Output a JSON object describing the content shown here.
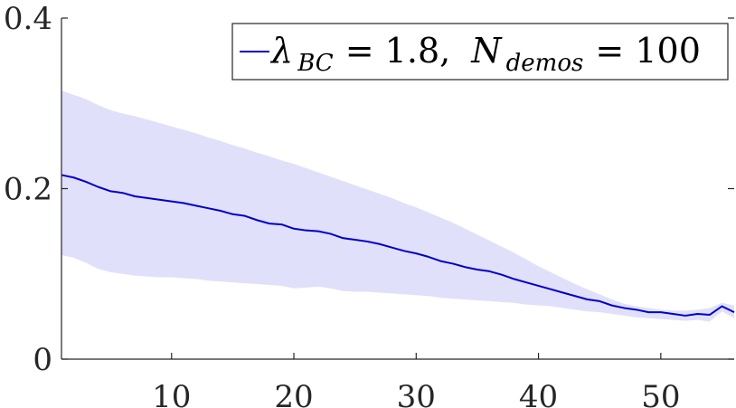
{
  "chart_data": {
    "type": "line",
    "title": "",
    "xlabel": "",
    "ylabel": "",
    "xlim": [
      1,
      56
    ],
    "ylim": [
      0,
      0.4
    ],
    "grid": false,
    "legend_position": "top-right",
    "x_ticks": [
      10,
      20,
      30,
      40,
      50
    ],
    "x_tick_labels": [
      "10",
      "20",
      "30",
      "40",
      "50"
    ],
    "y_ticks": [
      0,
      0.2,
      0.4
    ],
    "y_tick_labels": [
      "0",
      "0.2",
      "0.4"
    ],
    "series": [
      {
        "name": "λBC = 1.8, Ndemos = 100",
        "legend": {
          "lambda_symbol": "λ",
          "lambda_subscript": "BC",
          "lambda_value": "= 1.8,",
          "n_symbol": "N",
          "n_subscript": "demos",
          "n_value": "= 100"
        },
        "color": "#0000cc",
        "band_color": "#e0e0fa",
        "x": [
          1,
          2,
          3,
          4,
          5,
          6,
          7,
          8,
          9,
          10,
          11,
          12,
          13,
          14,
          15,
          16,
          17,
          18,
          19,
          20,
          21,
          22,
          23,
          24,
          25,
          26,
          27,
          28,
          29,
          30,
          31,
          32,
          33,
          34,
          35,
          36,
          37,
          38,
          39,
          40,
          41,
          42,
          43,
          44,
          45,
          46,
          47,
          48,
          49,
          50,
          51,
          52,
          53,
          54,
          55,
          56
        ],
        "mean": [
          0.216,
          0.213,
          0.208,
          0.202,
          0.197,
          0.195,
          0.191,
          0.189,
          0.187,
          0.185,
          0.183,
          0.18,
          0.177,
          0.174,
          0.17,
          0.168,
          0.163,
          0.159,
          0.158,
          0.153,
          0.151,
          0.15,
          0.147,
          0.142,
          0.14,
          0.138,
          0.135,
          0.131,
          0.127,
          0.124,
          0.12,
          0.115,
          0.112,
          0.108,
          0.105,
          0.103,
          0.099,
          0.094,
          0.09,
          0.086,
          0.082,
          0.078,
          0.074,
          0.07,
          0.068,
          0.063,
          0.06,
          0.058,
          0.055,
          0.055,
          0.053,
          0.051,
          0.053,
          0.052,
          0.062,
          0.055
        ],
        "upper": [
          0.315,
          0.31,
          0.305,
          0.298,
          0.292,
          0.288,
          0.285,
          0.281,
          0.277,
          0.273,
          0.269,
          0.265,
          0.26,
          0.256,
          0.251,
          0.247,
          0.242,
          0.238,
          0.233,
          0.229,
          0.224,
          0.219,
          0.214,
          0.209,
          0.204,
          0.199,
          0.194,
          0.189,
          0.183,
          0.178,
          0.172,
          0.166,
          0.16,
          0.153,
          0.146,
          0.139,
          0.132,
          0.125,
          0.117,
          0.109,
          0.102,
          0.095,
          0.088,
          0.082,
          0.076,
          0.07,
          0.065,
          0.062,
          0.06,
          0.058,
          0.057,
          0.057,
          0.058,
          0.06,
          0.066,
          0.063
        ],
        "lower": [
          0.122,
          0.119,
          0.113,
          0.106,
          0.102,
          0.1,
          0.098,
          0.097,
          0.096,
          0.096,
          0.095,
          0.094,
          0.092,
          0.091,
          0.09,
          0.089,
          0.088,
          0.087,
          0.086,
          0.083,
          0.084,
          0.085,
          0.083,
          0.08,
          0.079,
          0.079,
          0.078,
          0.077,
          0.076,
          0.075,
          0.074,
          0.072,
          0.071,
          0.07,
          0.069,
          0.068,
          0.067,
          0.066,
          0.064,
          0.063,
          0.062,
          0.06,
          0.058,
          0.056,
          0.055,
          0.053,
          0.051,
          0.049,
          0.048,
          0.047,
          0.046,
          0.045,
          0.046,
          0.044,
          0.056,
          0.048
        ]
      }
    ]
  }
}
